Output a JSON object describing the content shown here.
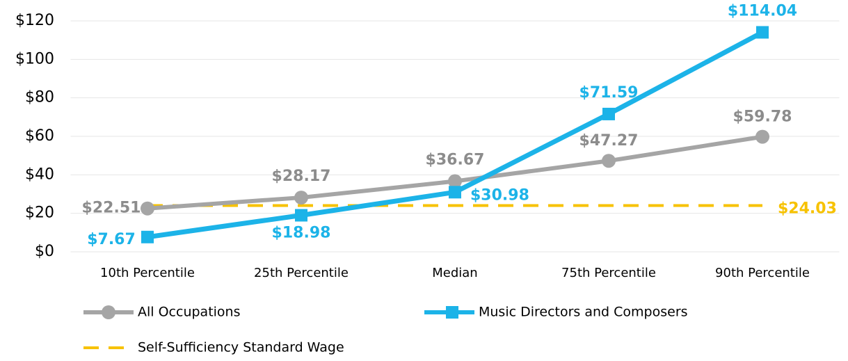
{
  "chart_data": {
    "type": "line",
    "categories": [
      "10th Percentile",
      "25th Percentile",
      "Median",
      "75th Percentile",
      "90th Percentile"
    ],
    "series": [
      {
        "name": "All Occupations",
        "color": "#a5a5a5",
        "marker": "circle",
        "values": [
          22.51,
          28.17,
          36.67,
          47.27,
          59.78
        ],
        "value_labels": [
          "$22.51",
          "$28.17",
          "$36.67",
          "$47.27",
          "$59.78"
        ]
      },
      {
        "name": "Music Directors and Composers",
        "color": "#1cb3e8",
        "marker": "square",
        "values": [
          7.67,
          18.98,
          30.98,
          71.59,
          114.04
        ],
        "value_labels": [
          "$7.67",
          "$18.98",
          "$30.98",
          "$71.59",
          "$114.04"
        ]
      },
      {
        "name": "Self-Sufficiency Standard Wage",
        "color": "#f7c200",
        "dashed": true,
        "values": [
          24.03,
          24.03,
          24.03,
          24.03,
          24.03
        ],
        "value_labels": [
          null,
          null,
          null,
          null,
          "$24.03"
        ]
      }
    ],
    "ylim": [
      0,
      120
    ],
    "yticks": [
      {
        "value": 0,
        "label": "$0"
      },
      {
        "value": 20,
        "label": "$20"
      },
      {
        "value": 40,
        "label": "$40"
      },
      {
        "value": 60,
        "label": "$60"
      },
      {
        "value": 80,
        "label": "$80"
      },
      {
        "value": 100,
        "label": "$100"
      },
      {
        "value": 120,
        "label": "$120"
      }
    ],
    "grid": true
  }
}
